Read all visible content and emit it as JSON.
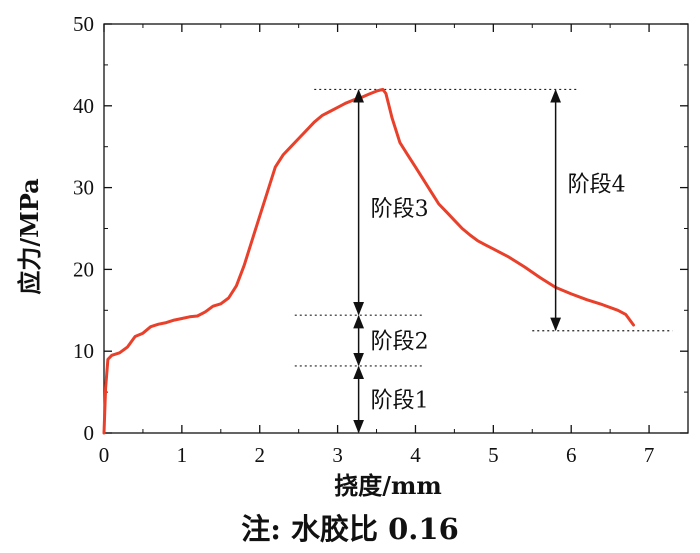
{
  "caption": "注: 水胶比 0.16",
  "chart_data": {
    "type": "line",
    "xlabel": "挠度/mm",
    "ylabel": "应力/MPa",
    "xlim": [
      0,
      7.5
    ],
    "ylim": [
      0,
      50
    ],
    "x_ticks": [
      0,
      1,
      2,
      3,
      4,
      5,
      6,
      7
    ],
    "y_ticks": [
      0,
      10,
      20,
      30,
      40,
      50
    ],
    "grid": false,
    "line_color": "#e8402a",
    "series": [
      {
        "x": [
          0,
          0.02,
          0.05,
          0.1,
          0.2,
          0.3,
          0.4,
          0.5,
          0.6,
          0.7,
          0.8,
          0.9,
          1.0,
          1.1,
          1.2,
          1.3,
          1.4,
          1.5,
          1.6,
          1.7,
          1.8,
          1.9,
          2.0,
          2.1,
          2.2,
          2.3,
          2.4,
          2.5,
          2.6,
          2.7,
          2.8,
          2.9,
          3.0,
          3.1,
          3.2,
          3.3,
          3.4,
          3.5,
          3.58,
          3.62,
          3.66,
          3.7,
          3.75,
          3.8,
          3.9,
          4.0,
          4.1,
          4.2,
          4.3,
          4.4,
          4.5,
          4.6,
          4.7,
          4.8,
          4.9,
          5.0,
          5.2,
          5.4,
          5.6,
          5.8,
          6.0,
          6.2,
          6.4,
          6.6,
          6.7,
          6.8
        ],
        "y": [
          0,
          5.5,
          9.0,
          9.5,
          9.8,
          10.5,
          11.8,
          12.2,
          13.0,
          13.3,
          13.5,
          13.8,
          14.0,
          14.2,
          14.3,
          14.8,
          15.5,
          15.8,
          16.5,
          18.0,
          20.5,
          23.5,
          26.5,
          29.5,
          32.5,
          34.0,
          35.0,
          36.0,
          37.0,
          38.0,
          38.8,
          39.3,
          39.8,
          40.3,
          40.7,
          41.0,
          41.4,
          41.8,
          42.0,
          41.5,
          40.0,
          38.5,
          37.0,
          35.5,
          34.0,
          32.5,
          31.0,
          29.5,
          28.0,
          27.0,
          26.0,
          25.0,
          24.2,
          23.5,
          23.0,
          22.5,
          21.5,
          20.3,
          19.0,
          17.8,
          17.0,
          16.3,
          15.7,
          15.0,
          14.5,
          13.2
        ]
      }
    ],
    "stages": [
      {
        "label": "阶段1",
        "x": 3.27,
        "y_from": 0,
        "y_to": 8.2
      },
      {
        "label": "阶段2",
        "x": 3.27,
        "y_from": 8.2,
        "y_to": 14.4
      },
      {
        "label": "阶段3",
        "x": 3.27,
        "y_from": 14.4,
        "y_to": 42.0
      },
      {
        "label": "阶段4",
        "x": 5.8,
        "y_from": 12.5,
        "y_to": 42.0
      }
    ],
    "reference_lines": [
      {
        "y": 42.0,
        "x_from": 2.7,
        "x_to": 6.1
      },
      {
        "y": 14.4,
        "x_from": 2.45,
        "x_to": 4.1
      },
      {
        "y": 8.2,
        "x_from": 2.45,
        "x_to": 4.1
      },
      {
        "y": 12.5,
        "x_from": 5.5,
        "x_to": 7.3
      }
    ]
  }
}
